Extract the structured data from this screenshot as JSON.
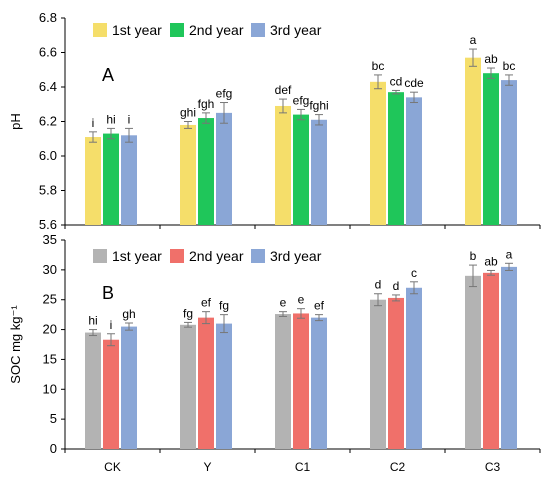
{
  "colors": {
    "panelA": [
      "#F5DE6A",
      "#1FC65A",
      "#8AA6D6"
    ],
    "panelB": [
      "#B3B3B3",
      "#F0706A",
      "#8AA6D6"
    ],
    "axis": "#000000",
    "error_bar": "#777777"
  },
  "categories": [
    "CK",
    "Y",
    "C1",
    "C2",
    "C3"
  ],
  "chart_data": [
    {
      "type": "bar",
      "panel_letter": "A",
      "ylabel": "pH",
      "ylim": [
        5.6,
        6.8
      ],
      "yticks": [
        "5.6",
        "5.8",
        "6.0",
        "6.2",
        "6.4",
        "6.6",
        "6.8"
      ],
      "legend_position": "top-left",
      "categories": [
        "CK",
        "Y",
        "C1",
        "C2",
        "C3"
      ],
      "series": [
        {
          "name": "1st year",
          "values": [
            6.11,
            6.18,
            6.29,
            6.43,
            6.57
          ],
          "errors": [
            0.03,
            0.02,
            0.04,
            0.04,
            0.05
          ],
          "labels": [
            "i",
            "ghi",
            "def",
            "bc",
            "a"
          ]
        },
        {
          "name": "2nd year",
          "values": [
            6.13,
            6.22,
            6.24,
            6.37,
            6.48
          ],
          "errors": [
            0.03,
            0.03,
            0.03,
            0.01,
            0.03
          ],
          "labels": [
            "hi",
            "fgh",
            "efg",
            "cd",
            "ab"
          ]
        },
        {
          "name": "3rd year",
          "values": [
            6.12,
            6.25,
            6.21,
            6.34,
            6.44
          ],
          "errors": [
            0.04,
            0.06,
            0.03,
            0.03,
            0.03
          ],
          "labels": [
            "i",
            "efg",
            "fghi",
            "cde",
            "bc"
          ]
        }
      ]
    },
    {
      "type": "bar",
      "panel_letter": "B",
      "ylabel": "SOC mg kg⁻¹",
      "ylim": [
        0,
        35
      ],
      "yticks": [
        "0",
        "5",
        "10",
        "15",
        "20",
        "25",
        "30",
        "35"
      ],
      "legend_position": "top-left",
      "categories": [
        "CK",
        "Y",
        "C1",
        "C2",
        "C3"
      ],
      "series": [
        {
          "name": "1st year",
          "values": [
            19.5,
            20.8,
            22.6,
            25.0,
            29.0
          ],
          "errors": [
            0.5,
            0.4,
            0.4,
            1.0,
            1.8
          ],
          "labels": [
            "hi",
            "fg",
            "e",
            "d",
            "b"
          ]
        },
        {
          "name": "2nd year",
          "values": [
            18.3,
            22.0,
            22.7,
            25.3,
            29.5
          ],
          "errors": [
            1.0,
            1.0,
            0.8,
            0.5,
            0.4
          ],
          "labels": [
            "i",
            "ef",
            "e",
            "d",
            "ab"
          ]
        },
        {
          "name": "3rd year",
          "values": [
            20.5,
            21.0,
            22.0,
            27.0,
            30.5
          ],
          "errors": [
            0.6,
            1.5,
            0.5,
            1.0,
            0.6
          ],
          "labels": [
            "gh",
            "fg",
            "ef",
            "c",
            "a"
          ]
        }
      ]
    }
  ]
}
